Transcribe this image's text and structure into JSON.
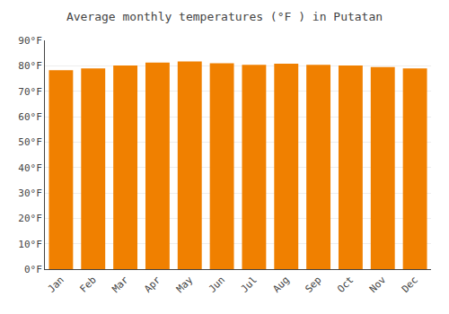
{
  "chart_data": {
    "type": "bar",
    "title": "Average monthly temperatures (°F ) in Putatan",
    "categories": [
      "Jan",
      "Feb",
      "Mar",
      "Apr",
      "May",
      "Jun",
      "Jul",
      "Aug",
      "Sep",
      "Oct",
      "Nov",
      "Dec"
    ],
    "values": [
      78.3,
      79.0,
      80.1,
      81.3,
      81.7,
      81.0,
      80.4,
      80.8,
      80.4,
      80.1,
      79.5,
      79.0
    ],
    "color": "#F08000",
    "ylim": [
      0,
      90
    ],
    "yticks": [
      {
        "value": 0,
        "label": "0°F"
      },
      {
        "value": 10,
        "label": "10°F"
      },
      {
        "value": 20,
        "label": "20°F"
      },
      {
        "value": 30,
        "label": "30°F"
      },
      {
        "value": 40,
        "label": "40°F"
      },
      {
        "value": 50,
        "label": "50°F"
      },
      {
        "value": 60,
        "label": "60°F"
      },
      {
        "value": 70,
        "label": "70°F"
      },
      {
        "value": 80,
        "label": "80°F"
      },
      {
        "value": 90,
        "label": "90°F"
      }
    ],
    "grid": true
  }
}
